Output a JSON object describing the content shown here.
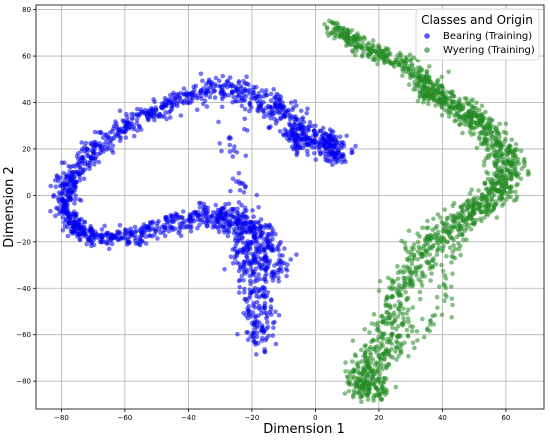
{
  "chart_data": {
    "type": "scatter",
    "title": "",
    "xlabel": "Dimension 1",
    "ylabel": "Dimension 2",
    "xlim": [
      -88,
      72
    ],
    "ylim": [
      -92,
      82
    ],
    "x_ticks": [
      -80,
      -60,
      -40,
      -20,
      0,
      20,
      40,
      60
    ],
    "y_ticks": [
      -80,
      -60,
      -40,
      -20,
      0,
      20,
      40,
      60,
      80
    ],
    "x_tick_labels": [
      "−80",
      "−60",
      "−40",
      "−20",
      "0",
      "20",
      "40",
      "60"
    ],
    "y_tick_labels": [
      "−80",
      "−60",
      "−40",
      "−20",
      "0",
      "20",
      "40",
      "60",
      "80"
    ],
    "grid": true,
    "legend": {
      "title": "Classes and Origin",
      "placement": "top-right"
    },
    "series": [
      {
        "name": "Bearing (Training)",
        "color": "#0000ee",
        "path": [
          [
            -16,
            -64
          ],
          [
            -18,
            -55
          ],
          [
            -17,
            -45
          ],
          [
            -19,
            -35
          ],
          [
            -16,
            -25
          ],
          [
            -20,
            -15
          ],
          [
            -25,
            -10
          ],
          [
            -30,
            -8
          ],
          [
            -40,
            -10
          ],
          [
            -48,
            -13
          ],
          [
            -55,
            -17
          ],
          [
            -62,
            -18
          ],
          [
            -68,
            -18
          ],
          [
            -73,
            -16
          ],
          [
            -76,
            -12
          ],
          [
            -79,
            -7
          ],
          [
            -79,
            0
          ],
          [
            -77,
            7
          ],
          [
            -73,
            15
          ],
          [
            -68,
            22
          ],
          [
            -62,
            28
          ],
          [
            -55,
            33
          ],
          [
            -48,
            38
          ],
          [
            -40,
            42
          ],
          [
            -32,
            47
          ],
          [
            -24,
            46
          ],
          [
            -15,
            41
          ],
          [
            -8,
            35
          ],
          [
            -3,
            27
          ],
          [
            4,
            21
          ],
          [
            7,
            16
          ],
          [
            5,
            26
          ],
          [
            -5,
            21
          ],
          [
            -8,
            30
          ],
          [
            -28,
            45
          ],
          [
            -22,
            -15
          ],
          [
            -24,
            -28
          ],
          [
            -12,
            -33
          ],
          [
            -15,
            -18
          ],
          [
            -40,
            -8
          ]
        ],
        "spread": [
          2.6,
          2.8,
          3.2,
          3.4,
          3.4,
          3.0,
          2.6,
          2.4,
          2.3,
          2.2,
          2.0,
          1.8,
          1.8,
          1.8,
          1.8,
          1.8,
          1.8,
          2.0,
          2.0,
          2.0,
          2.1,
          2.1,
          2.2,
          2.3,
          2.5,
          2.5,
          2.5,
          2.5,
          2.6,
          2.6,
          2.4,
          2.2,
          2.0,
          2.0,
          2.2,
          2.8,
          3.0,
          2.8,
          2.6,
          1.8
        ],
        "count": 1900
      },
      {
        "name": "Wyering (Training)",
        "color": "#228b22",
        "path": [
          [
            5,
            73
          ],
          [
            10,
            68
          ],
          [
            15,
            64
          ],
          [
            22,
            60
          ],
          [
            30,
            56
          ],
          [
            35,
            48
          ],
          [
            38,
            44
          ],
          [
            42,
            40
          ],
          [
            48,
            33
          ],
          [
            55,
            27
          ],
          [
            59,
            20
          ],
          [
            62,
            13
          ],
          [
            59,
            5
          ],
          [
            54,
            -3
          ],
          [
            48,
            -8
          ],
          [
            42,
            -15
          ],
          [
            36,
            -20
          ],
          [
            31,
            -30
          ],
          [
            28,
            -40
          ],
          [
            25,
            -50
          ],
          [
            22,
            -60
          ],
          [
            18,
            -70
          ],
          [
            15,
            -78
          ],
          [
            20,
            -85
          ],
          [
            11,
            -82
          ],
          [
            40,
            -50
          ],
          [
            45,
            -10
          ],
          [
            60,
            0
          ],
          [
            52,
            30
          ],
          [
            46,
            40
          ]
        ],
        "spread": [
          1.6,
          1.6,
          1.7,
          1.8,
          1.8,
          2.4,
          2.6,
          2.4,
          2.3,
          2.4,
          2.5,
          2.6,
          2.6,
          2.6,
          2.6,
          2.8,
          3.2,
          3.4,
          3.2,
          3.0,
          3.0,
          2.8,
          2.6,
          2.4,
          2.2,
          2.2,
          2.2,
          2.4,
          2.0,
          2.0
        ],
        "count": 1700
      }
    ]
  }
}
